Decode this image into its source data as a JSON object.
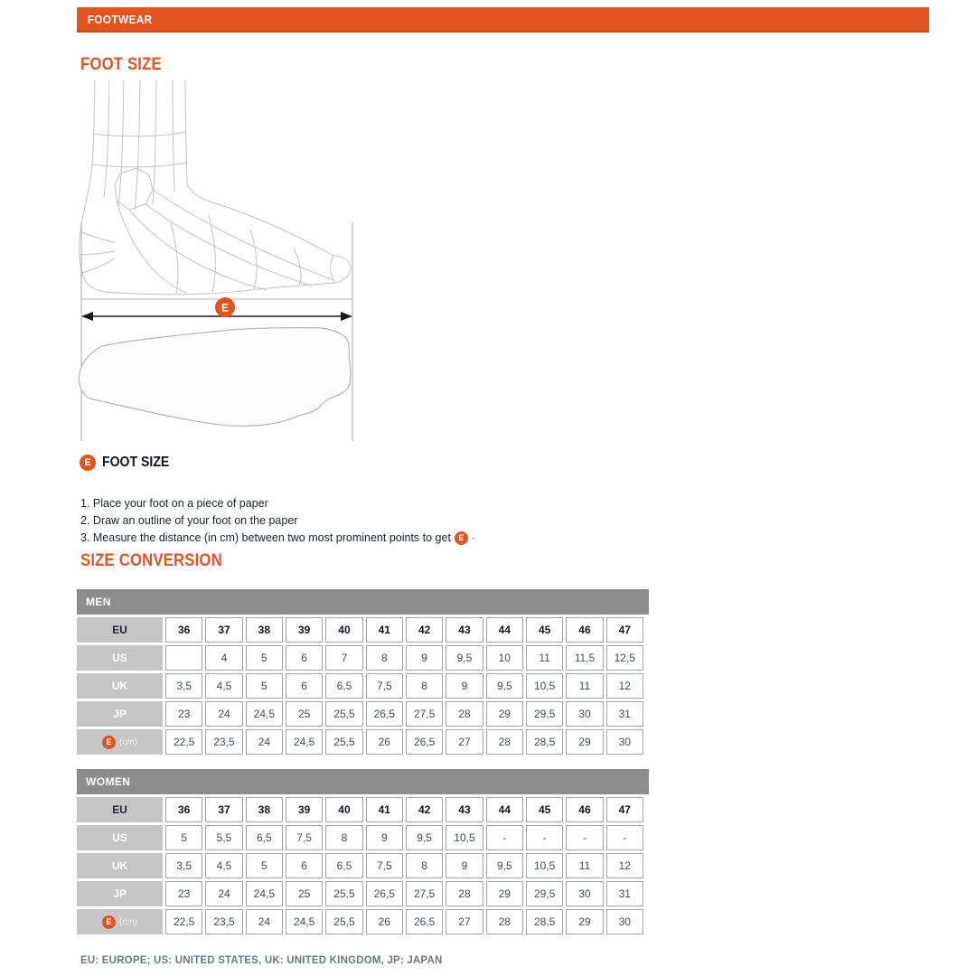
{
  "colors": {
    "accent": "#e4531f",
    "table_header_bg": "#8d8d8d",
    "row_label_bg": "#c6c6c6"
  },
  "topbar": {
    "title": "FOOTWEAR"
  },
  "foot_size_section": {
    "heading": "FOOT SIZE",
    "measure_label": "E",
    "diagram_caption": "FOOT SIZE",
    "instructions": [
      "1. Place your foot on a piece of paper",
      "2. Draw an outline of your foot on the paper",
      "3. Measure the distance (in cm) between two most prominent points to get"
    ],
    "instruction3_suffix": "·"
  },
  "size_conversion": {
    "heading": "SIZE CONVERSION",
    "tables": [
      {
        "title": "MEN",
        "rows": [
          {
            "label": "EU",
            "bold": true,
            "badge": false,
            "values": [
              "36",
              "37",
              "38",
              "39",
              "40",
              "41",
              "42",
              "43",
              "44",
              "45",
              "46",
              "47"
            ]
          },
          {
            "label": "US",
            "bold": false,
            "badge": false,
            "values": [
              "",
              "4",
              "5",
              "6",
              "7",
              "8",
              "9",
              "9,5",
              "10",
              "11",
              "11,5",
              "12,5"
            ]
          },
          {
            "label": "UK",
            "bold": false,
            "badge": false,
            "values": [
              "3,5",
              "4,5",
              "5",
              "6",
              "6,5",
              "7,5",
              "8",
              "9",
              "9,5",
              "10,5",
              "11",
              "12"
            ]
          },
          {
            "label": "JP",
            "bold": false,
            "badge": false,
            "values": [
              "23",
              "24",
              "24,5",
              "25",
              "25,5",
              "26,5",
              "27,5",
              "28",
              "29",
              "29,5",
              "30",
              "31"
            ]
          },
          {
            "label": "E",
            "unit": "(cm)",
            "bold": false,
            "badge": true,
            "values": [
              "22,5",
              "23,5",
              "24",
              "24,5",
              "25,5",
              "26",
              "26,5",
              "27",
              "28",
              "28,5",
              "29",
              "30"
            ]
          }
        ]
      },
      {
        "title": "WOMEN",
        "rows": [
          {
            "label": "EU",
            "bold": true,
            "badge": false,
            "values": [
              "36",
              "37",
              "38",
              "39",
              "40",
              "41",
              "42",
              "43",
              "44",
              "45",
              "46",
              "47"
            ]
          },
          {
            "label": "US",
            "bold": false,
            "badge": false,
            "values": [
              "5",
              "5,5",
              "6,5",
              "7,5",
              "8",
              "9",
              "9,5",
              "10,5",
              "-",
              "-",
              "-",
              "-"
            ]
          },
          {
            "label": "UK",
            "bold": false,
            "badge": false,
            "values": [
              "3,5",
              "4,5",
              "5",
              "6",
              "6,5",
              "7,5",
              "8",
              "9",
              "9,5",
              "10,5",
              "11",
              "12"
            ]
          },
          {
            "label": "JP",
            "bold": false,
            "badge": false,
            "values": [
              "23",
              "24",
              "24,5",
              "25",
              "25,5",
              "26,5",
              "27,5",
              "28",
              "29",
              "29,5",
              "30",
              "31"
            ]
          },
          {
            "label": "E",
            "unit": "(cm)",
            "bold": false,
            "badge": true,
            "values": [
              "22,5",
              "23,5",
              "24",
              "24,5",
              "25,5",
              "26",
              "26,5",
              "27",
              "28",
              "28,5",
              "29",
              "30"
            ]
          }
        ]
      }
    ],
    "footnote": "EU: EUROPE; US: UNITED STATES, UK: UNITED KINGDOM, JP: JAPAN"
  }
}
